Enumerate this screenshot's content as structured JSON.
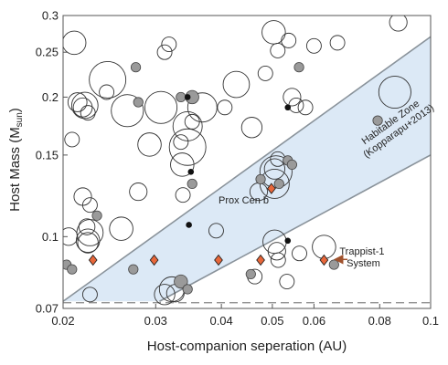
{
  "chart_data": {
    "type": "scatter",
    "xlabel": "Host-companion seperation (AU)",
    "ylabel": "Host Mass (M",
    "ylabel_sub": "sun",
    "ylabel_close": ")",
    "x_scale": "log",
    "y_scale": "log",
    "xlim": [
      0.02,
      0.1
    ],
    "ylim": [
      0.07,
      0.3
    ],
    "xticks": [
      {
        "value": 0.02,
        "label": "0.02"
      },
      {
        "value": 0.03,
        "label": "0.03"
      },
      {
        "value": 0.04,
        "label": "0.04"
      },
      {
        "value": 0.05,
        "label": "0.05"
      },
      {
        "value": 0.06,
        "label": "0.06"
      },
      {
        "value": 0.08,
        "label": "0.08"
      },
      {
        "value": 0.1,
        "label": "0.1"
      }
    ],
    "yticks": [
      {
        "value": 0.07,
        "label": "0.07"
      },
      {
        "value": 0.1,
        "label": "0.1"
      },
      {
        "value": 0.15,
        "label": "0.15"
      },
      {
        "value": 0.2,
        "label": "0.2"
      },
      {
        "value": 0.25,
        "label": "0.25"
      },
      {
        "value": 0.3,
        "label": "0.3"
      }
    ],
    "grid": false,
    "reference_line": {
      "y": 0.072,
      "style": "dashed"
    },
    "habitable_zone": {
      "label_line1": "Habitable Zone",
      "label_line2": "(Kopparapu+2013)",
      "fill": "#dce9f6",
      "stroke": "#8a939b",
      "inner_edge": [
        [
          0.02,
          0.0725
        ],
        [
          0.1,
          0.27
        ]
      ],
      "outer_edge": [
        [
          0.0305,
          0.0725
        ],
        [
          0.1,
          0.15
        ]
      ]
    },
    "annotations": [
      {
        "text": "Prox Cen b",
        "x": 0.048,
        "y": 0.128
      },
      {
        "text_line1": "Trappist-1",
        "text_line2": "System",
        "x": 0.062,
        "y": 0.089
      }
    ],
    "series": [
      {
        "marker": "open-circle",
        "points": [
          [
            0.021,
            0.262,
            1.6
          ],
          [
            0.0205,
            0.1,
            1.2
          ],
          [
            0.0208,
            0.162,
            1.0
          ],
          [
            0.0213,
            0.195,
            1.3
          ],
          [
            0.0218,
            0.19,
            1.3
          ],
          [
            0.022,
            0.192,
            1.8
          ],
          [
            0.0223,
            0.185,
            1.0
          ],
          [
            0.0218,
            0.122,
            1.2
          ],
          [
            0.0222,
            0.105,
            1.1
          ],
          [
            0.0223,
            0.098,
            1.6
          ],
          [
            0.0223,
            0.097,
            1.4
          ],
          [
            0.0225,
            0.102,
            1.8
          ],
          [
            0.0225,
            0.117,
            1.0
          ],
          [
            0.0243,
            0.218,
            2.5
          ],
          [
            0.0242,
            0.205,
            1.0
          ],
          [
            0.0225,
            0.075,
            1.0
          ],
          [
            0.0265,
            0.187,
            2.2
          ],
          [
            0.0258,
            0.104,
            1.6
          ],
          [
            0.0278,
            0.125,
            1.2
          ],
          [
            0.0307,
            0.19,
            2.2
          ],
          [
            0.0292,
            0.158,
            1.6
          ],
          [
            0.0312,
            0.25,
            1.0
          ],
          [
            0.0318,
            0.26,
            1.0
          ],
          [
            0.0345,
            0.173,
            2.0
          ],
          [
            0.0337,
            0.143,
            1.6
          ],
          [
            0.0345,
            0.156,
            2.5
          ],
          [
            0.0335,
            0.16,
            1.0
          ],
          [
            0.0338,
            0.123,
            1.0
          ],
          [
            0.0352,
            0.177,
            1.0
          ],
          [
            0.0368,
            0.19,
            2.0
          ],
          [
            0.0322,
            0.077,
            1.7
          ],
          [
            0.0312,
            0.075,
            1.4
          ],
          [
            0.0327,
            0.0755,
            1.2
          ],
          [
            0.0391,
            0.103,
            1.0
          ],
          [
            0.0406,
            0.19,
            1.0
          ],
          [
            0.0427,
            0.213,
            1.8
          ],
          [
            0.0457,
            0.172,
            1.4
          ],
          [
            0.0485,
            0.225,
            1.0
          ],
          [
            0.0503,
            0.276,
            1.6
          ],
          [
            0.0505,
            0.14,
            1.4
          ],
          [
            0.0508,
            0.138,
            2.2
          ],
          [
            0.0512,
            0.147,
            1.0
          ],
          [
            0.0505,
            0.13,
            2.0
          ],
          [
            0.0505,
            0.0975,
            1.6
          ],
          [
            0.051,
            0.093,
            1.2
          ],
          [
            0.0512,
            0.252,
            1.0
          ],
          [
            0.0537,
            0.265,
            1.0
          ],
          [
            0.0545,
            0.2,
            1.2
          ],
          [
            0.0555,
            0.192,
            1.0
          ],
          [
            0.0533,
            0.08,
            1.0
          ],
          [
            0.0513,
            0.089,
            1.0
          ],
          [
            0.0563,
            0.092,
            1.0
          ],
          [
            0.0578,
            0.19,
            1.0
          ],
          [
            0.06,
            0.258,
            1.0
          ],
          [
            0.0627,
            0.095,
            1.6
          ],
          [
            0.0665,
            0.262,
            1.0
          ],
          [
            0.0868,
            0.29,
            1.2
          ],
          [
            0.0855,
            0.205,
            2.2
          ],
          [
            0.0463,
            0.082,
            1.0
          ],
          [
            0.0471,
            0.125,
            1.2
          ]
        ]
      },
      {
        "marker": "gray-circle",
        "points": [
          [
            0.0203,
            0.087,
            1.0
          ],
          [
            0.0208,
            0.085,
            1.0
          ],
          [
            0.0232,
            0.111,
            1.0
          ],
          [
            0.0272,
            0.085,
            1.0
          ],
          [
            0.0275,
            0.232,
            1.0
          ],
          [
            0.0278,
            0.195,
            1.0
          ],
          [
            0.0335,
            0.2,
            1.0
          ],
          [
            0.0335,
            0.08,
            1.4
          ],
          [
            0.0345,
            0.077,
            1.0
          ],
          [
            0.0352,
            0.2,
            1.4
          ],
          [
            0.0352,
            0.13,
            1.0
          ],
          [
            0.0455,
            0.083,
            1.0
          ],
          [
            0.0475,
            0.133,
            1.0
          ],
          [
            0.0515,
            0.13,
            1.0
          ],
          [
            0.0535,
            0.146,
            1.0
          ],
          [
            0.0545,
            0.143,
            1.0
          ],
          [
            0.0562,
            0.232,
            1.0
          ],
          [
            0.0655,
            0.087,
            1.0
          ],
          [
            0.0793,
            0.178,
            1.0
          ]
        ]
      },
      {
        "marker": "black-dot",
        "points": [
          [
            0.0345,
            0.2,
            1.0
          ],
          [
            0.035,
            0.138,
            1.0
          ],
          [
            0.0347,
            0.106,
            1.0
          ],
          [
            0.0535,
            0.19,
            1.0
          ],
          [
            0.0535,
            0.098,
            1.0
          ]
        ]
      },
      {
        "marker": "orange-diamond",
        "points": [
          [
            0.0228,
            0.089,
            1.0
          ],
          [
            0.0298,
            0.089,
            1.0
          ],
          [
            0.0395,
            0.089,
            1.0
          ],
          [
            0.0475,
            0.089,
            1.0
          ],
          [
            0.0498,
            0.127,
            1.0
          ],
          [
            0.0627,
            0.089,
            1.0
          ]
        ]
      }
    ]
  }
}
